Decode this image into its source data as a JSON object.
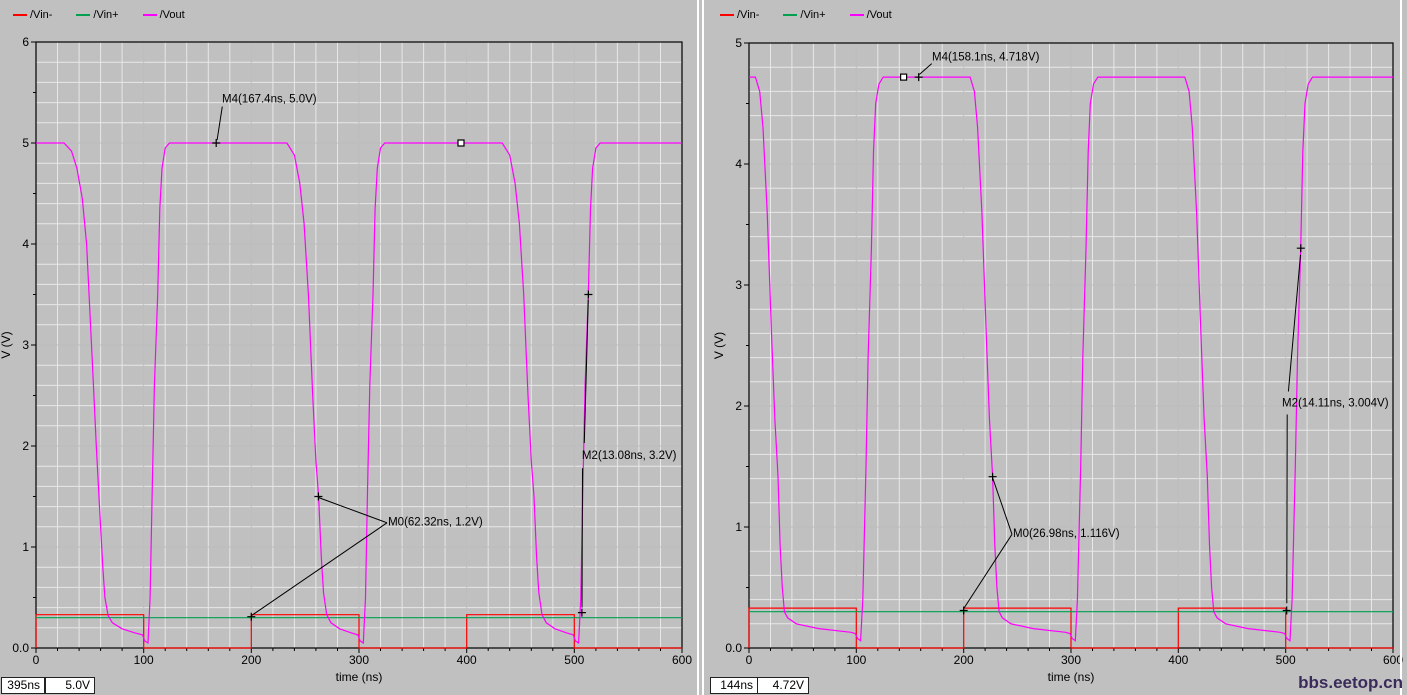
{
  "window": {
    "background": "#c0c0c0",
    "watermark": "bbs.eetop.cn",
    "watermark_color": "#3a2c5a"
  },
  "panels": [
    {
      "name": "left",
      "status_time": "395ns",
      "status_value": "5.0V"
    },
    {
      "name": "right",
      "status_time": "144ns",
      "status_value": "4.72V"
    }
  ],
  "chart_data": [
    {
      "type": "line",
      "title": "",
      "xlabel": "time (ns)",
      "ylabel": "V (V)",
      "xlim": [
        0,
        600
      ],
      "ylim": [
        0,
        6
      ],
      "xticks": [
        0,
        100,
        200,
        300,
        400,
        500,
        600
      ],
      "ytick_values": [
        0,
        1,
        2,
        3,
        4,
        5,
        6
      ],
      "ytick_labels": [
        "0.0",
        "1",
        "2",
        "3",
        "4",
        "5",
        "6"
      ],
      "minor_x": 20,
      "minor_y": 0.2,
      "grid": "on",
      "legend_position": "top-left",
      "series": [
        {
          "name": "/Vin-",
          "color": "#ff0000",
          "points": [
            [
              0,
              0
            ],
            [
              0,
              0.33
            ],
            [
              100,
              0.33
            ],
            [
              100,
              0
            ],
            [
              200,
              0
            ],
            [
              200,
              0.33
            ],
            [
              300,
              0.33
            ],
            [
              300,
              0
            ],
            [
              400,
              0
            ],
            [
              400,
              0.33
            ],
            [
              500,
              0.33
            ],
            [
              500,
              0
            ],
            [
              600,
              0
            ]
          ]
        },
        {
          "name": "/Vin+",
          "color": "#00a050",
          "points": [
            [
              0,
              0.3
            ],
            [
              600,
              0.3
            ]
          ]
        },
        {
          "name": "/Vout",
          "color": "#ff00ff",
          "points": [
            [
              0,
              5
            ],
            [
              26,
              5
            ],
            [
              33,
              4.92
            ],
            [
              38,
              4.75
            ],
            [
              43,
              4.45
            ],
            [
              47,
              4.0
            ],
            [
              52,
              2.9
            ],
            [
              56,
              2.0
            ],
            [
              59,
              1.4
            ],
            [
              62,
              0.8
            ],
            [
              64,
              0.5
            ],
            [
              67,
              0.32
            ],
            [
              71,
              0.25
            ],
            [
              80,
              0.19
            ],
            [
              92,
              0.15
            ],
            [
              99,
              0.13
            ],
            [
              101,
              0.07
            ],
            [
              104,
              0.05
            ],
            [
              106,
              0.5
            ],
            [
              108,
              1.6
            ],
            [
              110,
              2.6
            ],
            [
              113,
              3.5
            ],
            [
              115,
              4.35
            ],
            [
              117,
              4.75
            ],
            [
              120,
              4.95
            ],
            [
              124,
              5
            ],
            [
              233,
              5
            ],
            [
              240,
              4.88
            ],
            [
              245,
              4.6
            ],
            [
              249,
              4.2
            ],
            [
              253,
              3.5
            ],
            [
              257,
              2.5
            ],
            [
              260,
              1.85
            ],
            [
              262.5,
              1.5
            ],
            [
              265,
              0.9
            ],
            [
              267,
              0.55
            ],
            [
              270,
              0.33
            ],
            [
              274,
              0.25
            ],
            [
              282,
              0.19
            ],
            [
              293,
              0.15
            ],
            [
              299,
              0.13
            ],
            [
              301,
              0.07
            ],
            [
              304,
              0.05
            ],
            [
              306,
              0.5
            ],
            [
              308,
              1.6
            ],
            [
              310,
              2.6
            ],
            [
              313,
              3.5
            ],
            [
              315,
              4.35
            ],
            [
              317,
              4.75
            ],
            [
              320,
              4.95
            ],
            [
              324,
              5
            ],
            [
              433,
              5
            ],
            [
              440,
              4.88
            ],
            [
              445,
              4.6
            ],
            [
              449,
              4.2
            ],
            [
              453,
              3.5
            ],
            [
              457,
              2.5
            ],
            [
              460,
              1.85
            ],
            [
              462.5,
              1.5
            ],
            [
              465,
              0.9
            ],
            [
              467,
              0.55
            ],
            [
              470,
              0.33
            ],
            [
              474,
              0.25
            ],
            [
              482,
              0.19
            ],
            [
              493,
              0.15
            ],
            [
              499,
              0.13
            ],
            [
              501,
              0.07
            ],
            [
              504,
              0.05
            ],
            [
              506,
              0.5
            ],
            [
              508,
              1.6
            ],
            [
              510,
              2.6
            ],
            [
              513,
              3.5
            ],
            [
              515,
              4.35
            ],
            [
              517,
              4.75
            ],
            [
              520,
              4.95
            ],
            [
              524,
              5
            ],
            [
              600,
              5
            ]
          ]
        }
      ],
      "markers": [
        {
          "id": "M4",
          "text": "M4(167.4ns, 5.0V)",
          "label_at": [
            172.8,
            5.5
          ],
          "crosses": [
            [
              167.4,
              5.0
            ]
          ],
          "lines": [
            [
              168.2,
              5.03,
              173.0,
              5.36
            ]
          ]
        },
        {
          "id": "M0",
          "text": "M0(62.32ns, 1.2V)",
          "label_at": [
            327,
            1.31
          ],
          "crosses": [
            [
              262.3,
              1.5
            ],
            [
              200,
              0.31
            ]
          ],
          "lines": [
            [
              262.3,
              1.49,
              326,
              1.24
            ],
            [
              200,
              0.32,
              326,
              1.24
            ]
          ]
        },
        {
          "id": "M2",
          "text": "M2(13.08ns, 3.2V)",
          "label_at": [
            507,
            1.97
          ],
          "crosses": [
            [
              513.1,
              3.5
            ],
            [
              507,
              0.35
            ]
          ],
          "lines": [
            [
              513.0,
              3.45,
              509.3,
              2.03
            ],
            [
              507.6,
              1.78,
              507.1,
              0.4
            ]
          ]
        }
      ],
      "cursor_square": [
        394.7,
        5.0
      ]
    },
    {
      "type": "line",
      "title": "",
      "xlabel": "time (ns)",
      "ylabel": "V (V)",
      "xlim": [
        0,
        600
      ],
      "ylim": [
        0,
        5
      ],
      "xticks": [
        0,
        100,
        200,
        300,
        400,
        500,
        600
      ],
      "ytick_values": [
        0,
        1,
        2,
        3,
        4,
        5
      ],
      "ytick_labels": [
        "0.0",
        "1",
        "2",
        "3",
        "4",
        "5"
      ],
      "minor_x": 20,
      "minor_y": 0.2,
      "grid": "on",
      "legend_position": "top-left",
      "series": [
        {
          "name": "/Vin-",
          "color": "#ff0000",
          "points": [
            [
              0,
              0
            ],
            [
              0,
              0.33
            ],
            [
              100,
              0.33
            ],
            [
              100,
              0
            ],
            [
              200,
              0
            ],
            [
              200,
              0.33
            ],
            [
              300,
              0.33
            ],
            [
              300,
              0
            ],
            [
              400,
              0
            ],
            [
              400,
              0.33
            ],
            [
              500,
              0.33
            ],
            [
              500,
              0
            ],
            [
              600,
              0
            ]
          ]
        },
        {
          "name": "/Vin+",
          "color": "#00a050",
          "points": [
            [
              0,
              0.3
            ],
            [
              600,
              0.3
            ]
          ]
        },
        {
          "name": "/Vout",
          "color": "#ff00ff",
          "points": [
            [
              0,
              4.718
            ],
            [
              6,
              4.718
            ],
            [
              10,
              4.6
            ],
            [
              13,
              4.3
            ],
            [
              17,
              3.6
            ],
            [
              21,
              2.6
            ],
            [
              24,
              1.9
            ],
            [
              27,
              1.42
            ],
            [
              29,
              0.85
            ],
            [
              31,
              0.5
            ],
            [
              33,
              0.3
            ],
            [
              36,
              0.25
            ],
            [
              44,
              0.2
            ],
            [
              65,
              0.16
            ],
            [
              95,
              0.13
            ],
            [
              99,
              0.12
            ],
            [
              101,
              0.08
            ],
            [
              104,
              0.06
            ],
            [
              106,
              0.4
            ],
            [
              109,
              1.5
            ],
            [
              111,
              2.4
            ],
            [
              114,
              3.3
            ],
            [
              116,
              4.1
            ],
            [
              118,
              4.5
            ],
            [
              121,
              4.66
            ],
            [
              125,
              4.718
            ],
            [
              206,
              4.718
            ],
            [
              210,
              4.6
            ],
            [
              213,
              4.3
            ],
            [
              217,
              3.6
            ],
            [
              221,
              2.6
            ],
            [
              224,
              1.9
            ],
            [
              227,
              1.42
            ],
            [
              229,
              0.85
            ],
            [
              231,
              0.5
            ],
            [
              233,
              0.3
            ],
            [
              236,
              0.25
            ],
            [
              244,
              0.2
            ],
            [
              265,
              0.16
            ],
            [
              295,
              0.13
            ],
            [
              299,
              0.12
            ],
            [
              301,
              0.08
            ],
            [
              304,
              0.06
            ],
            [
              306,
              0.4
            ],
            [
              309,
              1.5
            ],
            [
              311,
              2.4
            ],
            [
              314,
              3.3
            ],
            [
              316,
              4.1
            ],
            [
              318,
              4.5
            ],
            [
              321,
              4.66
            ],
            [
              325,
              4.718
            ],
            [
              406,
              4.718
            ],
            [
              410,
              4.6
            ],
            [
              413,
              4.3
            ],
            [
              417,
              3.6
            ],
            [
              421,
              2.6
            ],
            [
              424,
              1.9
            ],
            [
              427,
              1.42
            ],
            [
              429,
              0.85
            ],
            [
              431,
              0.5
            ],
            [
              433,
              0.3
            ],
            [
              436,
              0.25
            ],
            [
              444,
              0.2
            ],
            [
              465,
              0.16
            ],
            [
              495,
              0.13
            ],
            [
              499,
              0.12
            ],
            [
              501,
              0.08
            ],
            [
              504,
              0.06
            ],
            [
              506,
              0.4
            ],
            [
              509,
              1.5
            ],
            [
              511,
              2.4
            ],
            [
              514,
              3.3
            ],
            [
              516,
              4.1
            ],
            [
              518,
              4.5
            ],
            [
              521,
              4.66
            ],
            [
              525,
              4.718
            ],
            [
              600,
              4.718
            ]
          ]
        }
      ],
      "markers": [
        {
          "id": "M4",
          "text": "M4(158.1ns, 4.718V)",
          "label_at": [
            170.5,
            4.94
          ],
          "crosses": [
            [
              158.1,
              4.718
            ]
          ],
          "lines": [
            [
              158.8,
              4.74,
              170.2,
              4.83
            ]
          ]
        },
        {
          "id": "M0",
          "text": "M0(26.98ns, 1.116V)",
          "label_at": [
            246,
            1.0
          ],
          "crosses": [
            [
              226.98,
              1.416
            ],
            [
              200,
              0.31
            ]
          ],
          "lines": [
            [
              227.2,
              1.4,
              245,
              0.94
            ],
            [
              200.3,
              0.33,
              245,
              0.94
            ]
          ]
        },
        {
          "id": "M2",
          "text": "M2(14.11ns, 3.004V)",
          "label_at": [
            496.6,
            2.08
          ],
          "crosses": [
            [
              514.1,
              3.304
            ],
            [
              501,
              0.31
            ]
          ],
          "lines": [
            [
              513.8,
              3.25,
              502.5,
              2.12
            ],
            [
              501.4,
              1.93,
              501.1,
              0.37
            ]
          ]
        }
      ],
      "cursor_square": [
        144,
        4.718
      ]
    }
  ]
}
